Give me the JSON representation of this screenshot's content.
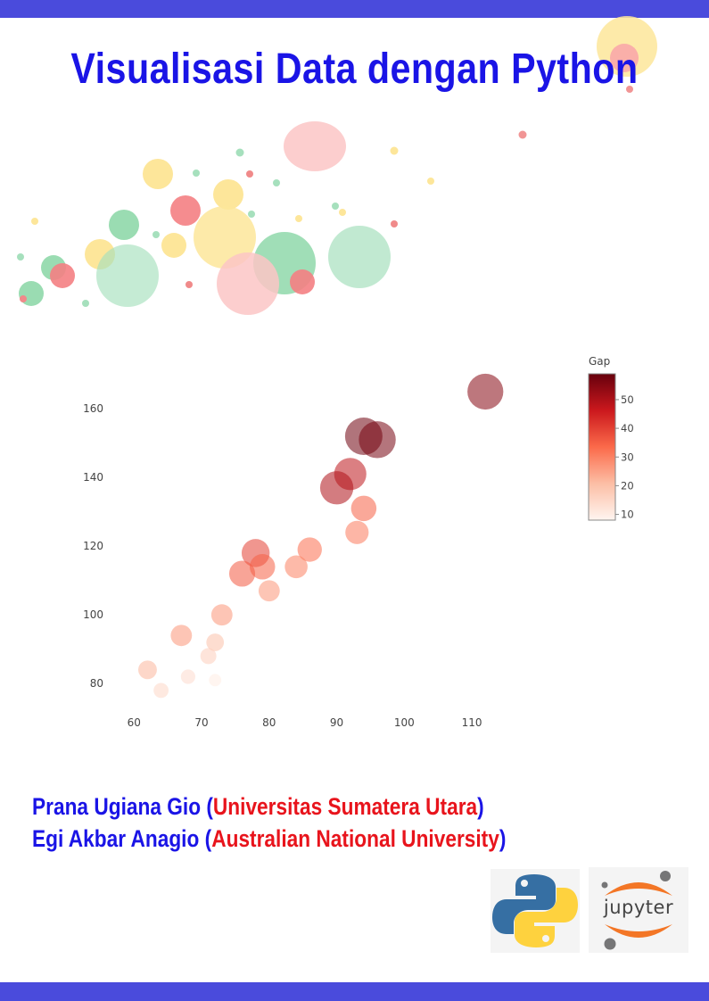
{
  "title": "Visualisasi Data dengan Python",
  "authors": [
    {
      "name": "Prana Ugiana Gio",
      "affiliation": "Universitas Sumatera Utara"
    },
    {
      "name": "Egi Akbar Anagio",
      "affiliation": "Australian National University"
    }
  ],
  "colors": {
    "band": "#4a4bdc",
    "title": "#1a14e6",
    "affiliation": "#e8141c"
  },
  "logos": {
    "python": "python-logo",
    "jupyter": "Jupyter"
  },
  "jupyter_label": "jupyter",
  "chart_data": {
    "type": "scatter",
    "title": "",
    "xlabel": "",
    "ylabel": "",
    "x_ticks": [
      60,
      70,
      80,
      90,
      100,
      110
    ],
    "y_ticks": [
      80,
      100,
      120,
      140,
      160
    ],
    "xlim": [
      56,
      122
    ],
    "ylim": [
      72,
      172
    ],
    "grid": false,
    "colorbar": {
      "title": "Gap",
      "ticks": [
        10,
        20,
        30,
        40,
        50
      ],
      "range": [
        8,
        59
      ]
    },
    "points": [
      {
        "x": 112,
        "y": 165,
        "gap": 55
      },
      {
        "x": 94,
        "y": 152,
        "gap": 58
      },
      {
        "x": 96,
        "y": 151,
        "gap": 57
      },
      {
        "x": 92,
        "y": 141,
        "gap": 48
      },
      {
        "x": 90,
        "y": 137,
        "gap": 50
      },
      {
        "x": 94,
        "y": 131,
        "gap": 35
      },
      {
        "x": 93,
        "y": 124,
        "gap": 31
      },
      {
        "x": 86,
        "y": 119,
        "gap": 33
      },
      {
        "x": 78,
        "y": 118,
        "gap": 40
      },
      {
        "x": 79,
        "y": 114,
        "gap": 35
      },
      {
        "x": 76,
        "y": 112,
        "gap": 36
      },
      {
        "x": 84,
        "y": 114,
        "gap": 30
      },
      {
        "x": 80,
        "y": 107,
        "gap": 27
      },
      {
        "x": 73,
        "y": 100,
        "gap": 27
      },
      {
        "x": 67,
        "y": 94,
        "gap": 27
      },
      {
        "x": 72,
        "y": 92,
        "gap": 20
      },
      {
        "x": 71,
        "y": 88,
        "gap": 17
      },
      {
        "x": 62,
        "y": 84,
        "gap": 22
      },
      {
        "x": 68,
        "y": 82,
        "gap": 14
      },
      {
        "x": 64,
        "y": 78,
        "gap": 15
      },
      {
        "x": 72,
        "y": 81,
        "gap": 10
      }
    ]
  }
}
